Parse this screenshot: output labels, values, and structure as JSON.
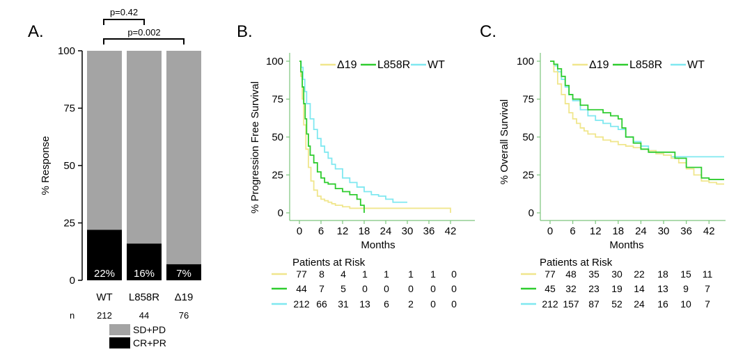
{
  "colors": {
    "d19": "#f0e68c",
    "l858r": "#2ecc2e",
    "wt": "#7fe8f0",
    "sdpd": "#a4a4a4",
    "crpr": "#000000"
  },
  "chart_data": [
    {
      "panel": "A.",
      "type": "bar",
      "stacked": true,
      "categories": [
        "WT",
        "L858R",
        "Δ19"
      ],
      "n_label": "n",
      "n": [
        "212",
        "44",
        "76"
      ],
      "series": [
        {
          "name": "CR+PR",
          "values": [
            22,
            16,
            7
          ],
          "labels": [
            "22%",
            "16%",
            "7%"
          ]
        },
        {
          "name": "SD+PD",
          "values": [
            78,
            84,
            93
          ]
        }
      ],
      "ylabel": "% Response",
      "ylim": [
        0,
        100
      ],
      "yticks": [
        "0",
        "25",
        "50",
        "75",
        "100"
      ],
      "annotations": [
        "p=0.42",
        "p=0.002"
      ],
      "legend": {
        "position": "bottom",
        "items": [
          "SD+PD",
          "CR+PR"
        ]
      }
    },
    {
      "panel": "B.",
      "type": "line",
      "style": "kaplan-meier",
      "xlabel": "Months",
      "ylabel": "% Progression Free Survival",
      "xlim": [
        0,
        42
      ],
      "ylim": [
        0,
        100
      ],
      "xticks": [
        "0",
        "6",
        "12",
        "18",
        "24",
        "30",
        "36",
        "42"
      ],
      "yticks": [
        "0",
        "25",
        "50",
        "75",
        "100"
      ],
      "legend": {
        "position": "top",
        "items": [
          "Δ19",
          "L858R",
          "WT"
        ]
      },
      "series": [
        {
          "name": "Δ19",
          "x": [
            0,
            0.4,
            0.8,
            1.2,
            1.8,
            2.5,
            3.2,
            4,
            5,
            6,
            7,
            8,
            9,
            10,
            12,
            14,
            16,
            18,
            24,
            30,
            36,
            42
          ],
          "y": [
            100,
            90,
            75,
            58,
            42,
            30,
            21,
            15,
            11,
            9,
            8,
            7,
            6,
            5,
            4,
            3,
            3,
            3,
            3,
            3,
            3,
            0
          ]
        },
        {
          "name": "L858R",
          "x": [
            0,
            0.4,
            0.8,
            1.2,
            1.6,
            2,
            2.5,
            3,
            4,
            5,
            6,
            7,
            8,
            10,
            12,
            14,
            16,
            17,
            18
          ],
          "y": [
            100,
            93,
            83,
            72,
            62,
            52,
            44,
            38,
            33,
            27,
            23,
            20,
            19,
            16,
            14,
            12,
            9,
            5,
            0
          ]
        },
        {
          "name": "WT",
          "x": [
            0,
            0.5,
            1,
            1.5,
            2,
            3,
            4,
            5,
            6,
            7,
            8,
            9,
            10,
            12,
            14,
            16,
            18,
            20,
            22,
            24,
            26,
            28,
            30
          ],
          "y": [
            100,
            96,
            88,
            80,
            72,
            62,
            55,
            49,
            44,
            40,
            36,
            32,
            29,
            23,
            20,
            17,
            14,
            12,
            11,
            9,
            7,
            7,
            7
          ]
        }
      ],
      "risk_table": {
        "title": "Patients at Risk",
        "rows": [
          {
            "name": "Δ19",
            "values": [
              "77",
              "8",
              "4",
              "1",
              "1",
              "1",
              "1",
              "0"
            ]
          },
          {
            "name": "L858R",
            "values": [
              "44",
              "7",
              "5",
              "0",
              "0",
              "0",
              "0",
              "0"
            ]
          },
          {
            "name": "WT",
            "values": [
              "212",
              "66",
              "31",
              "13",
              "6",
              "2",
              "0",
              "0"
            ]
          }
        ]
      }
    },
    {
      "panel": "C.",
      "type": "line",
      "style": "kaplan-meier",
      "xlabel": "Months",
      "ylabel": "% Overall Survival",
      "xlim": [
        0,
        46
      ],
      "ylim": [
        0,
        100
      ],
      "xticks": [
        "0",
        "6",
        "12",
        "18",
        "24",
        "30",
        "36",
        "42"
      ],
      "yticks": [
        "0",
        "25",
        "50",
        "75",
        "100"
      ],
      "legend": {
        "position": "top",
        "items": [
          "Δ19",
          "L858R",
          "WT"
        ]
      },
      "series": [
        {
          "name": "Δ19",
          "x": [
            0,
            1,
            2,
            3,
            4,
            5,
            6,
            7,
            8,
            9,
            10,
            12,
            14,
            16,
            18,
            20,
            22,
            24,
            26,
            28,
            30,
            32,
            34,
            36,
            38,
            40,
            42,
            44,
            46
          ],
          "y": [
            100,
            93,
            85,
            78,
            72,
            66,
            62,
            59,
            56,
            54,
            52,
            50,
            48,
            47,
            45,
            44,
            43,
            42,
            41,
            39,
            38,
            36,
            33,
            29,
            25,
            21,
            20,
            19,
            19
          ]
        },
        {
          "name": "L858R",
          "x": [
            0,
            1,
            2,
            3,
            4,
            5,
            6,
            8,
            10,
            12,
            14,
            16,
            18,
            19,
            20,
            22,
            24,
            26,
            30,
            33,
            36,
            40,
            42,
            46
          ],
          "y": [
            100,
            98,
            95,
            90,
            84,
            78,
            75,
            71,
            68,
            68,
            66,
            64,
            62,
            56,
            50,
            46,
            42,
            40,
            40,
            36,
            30,
            23,
            22,
            22
          ]
        },
        {
          "name": "WT",
          "x": [
            0,
            1,
            2,
            3,
            4,
            5,
            6,
            8,
            10,
            12,
            14,
            16,
            18,
            20,
            22,
            24,
            26,
            28,
            30,
            32,
            34,
            36,
            40,
            46
          ],
          "y": [
            100,
            97,
            93,
            88,
            83,
            78,
            74,
            68,
            64,
            61,
            59,
            57,
            55,
            50,
            47,
            44,
            41,
            39,
            38,
            37,
            37,
            37,
            37,
            37
          ]
        }
      ],
      "risk_table": {
        "title": "Patients at Risk",
        "rows": [
          {
            "name": "Δ19",
            "values": [
              "77",
              "48",
              "35",
              "30",
              "22",
              "18",
              "15",
              "11"
            ]
          },
          {
            "name": "L858R",
            "values": [
              "45",
              "32",
              "23",
              "19",
              "14",
              "13",
              "9",
              "7"
            ]
          },
          {
            "name": "WT",
            "values": [
              "212",
              "157",
              "87",
              "52",
              "24",
              "16",
              "10",
              "7"
            ]
          }
        ]
      }
    }
  ]
}
